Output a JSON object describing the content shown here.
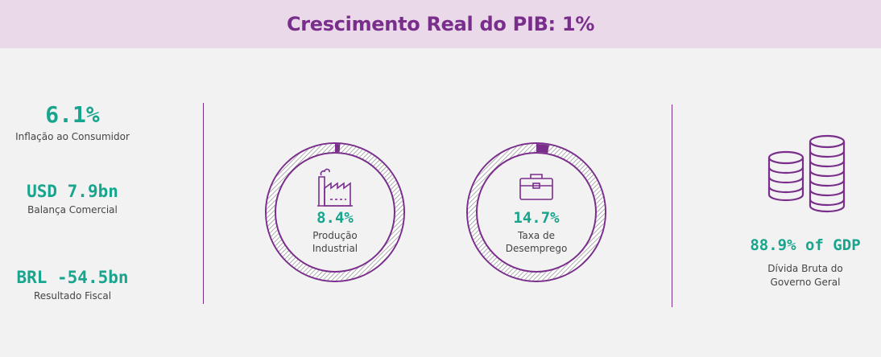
{
  "header": {
    "title": "Crescimento Real do PIB: 1%"
  },
  "left_stats": [
    {
      "value": "6.1%",
      "label": "Inflação ao Consumidor"
    },
    {
      "value": "USD 7.9bn",
      "label": "Balança Comercial"
    },
    {
      "value": "BRL -54.5bn",
      "label": "Resultado Fiscal"
    }
  ],
  "gauges": [
    {
      "value": "8.4%",
      "label_line1": "Produção",
      "label_line2": "Industrial",
      "icon": "factory-icon",
      "fill_fraction": 0.012
    },
    {
      "value": "14.7%",
      "label_line1": "Taxa de",
      "label_line2": "Desemprego",
      "icon": "briefcase-icon",
      "fill_fraction": 0.03
    }
  ],
  "debt": {
    "value": "88.9% of GDP",
    "label_line1": "Dívida Bruta do",
    "label_line2": "Governo Geral",
    "icon": "coins-icon"
  },
  "colors": {
    "accent": "#7a2e8c",
    "value": "#17a58e",
    "banner": "#ead9e8",
    "background": "#f2f2f2"
  }
}
